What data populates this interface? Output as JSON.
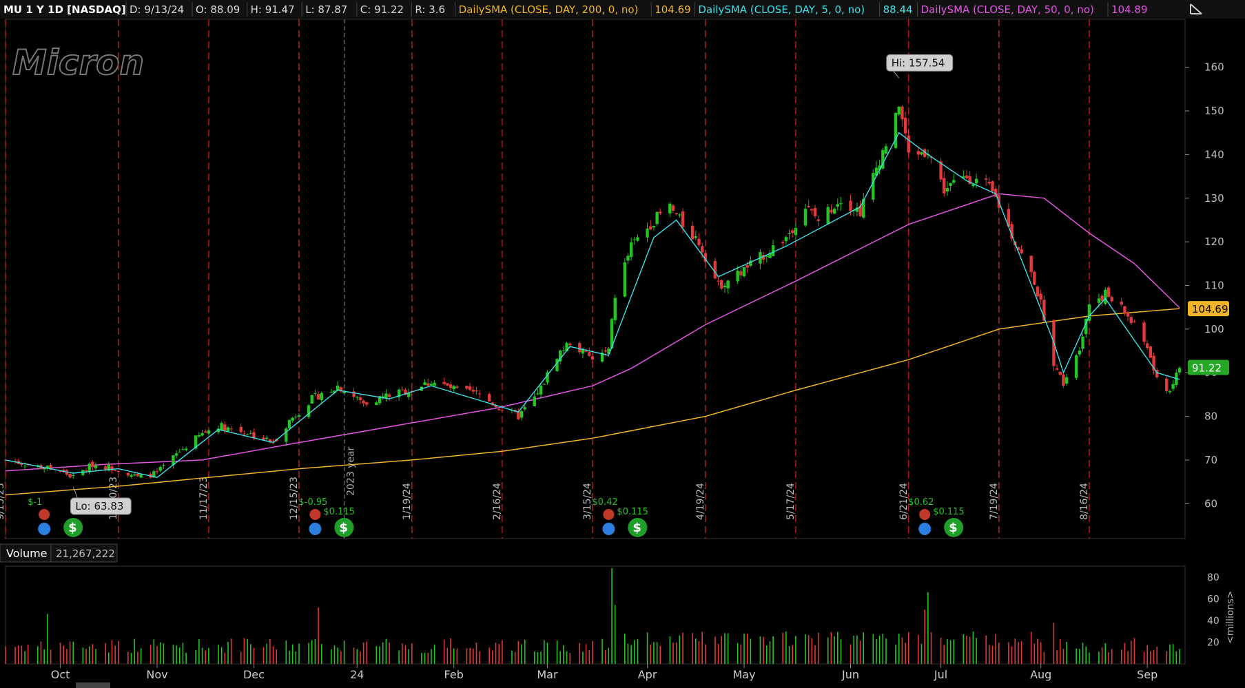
{
  "header": {
    "symbol": "MU 1 Y 1D [NASDAQ]",
    "fields": [
      {
        "label": "D: 9/13/24",
        "color": "#d8d8d8"
      },
      {
        "label": "O: 88.09",
        "color": "#d8d8d8"
      },
      {
        "label": "H: 91.47",
        "color": "#d8d8d8"
      },
      {
        "label": "L: 87.87",
        "color": "#d8d8d8"
      },
      {
        "label": "C: 91.22",
        "color": "#d8d8d8"
      },
      {
        "label": "R: 3.6",
        "color": "#d8d8d8"
      },
      {
        "label": "DailySMA (CLOSE, DAY, 200, 0, no)",
        "color": "#f0b429"
      },
      {
        "label": "104.69",
        "color": "#f0b429"
      },
      {
        "label": "DailySMA (CLOSE, DAY, 5, 0, no)",
        "color": "#3ee0ea"
      },
      {
        "label": "88.44",
        "color": "#3ee0ea"
      },
      {
        "label": "DailySMA (CLOSE, DAY, 50, 0, no)",
        "color": "#e455e4"
      },
      {
        "label": "104.89",
        "color": "#e455e4"
      }
    ]
  },
  "logo_text": "Micron",
  "chart_data": {
    "type": "candlestick",
    "price_axis": {
      "min": 52,
      "max": 171,
      "ticks": [
        60,
        70,
        80,
        90,
        100,
        110,
        120,
        130,
        140,
        150,
        160
      ]
    },
    "hi_label": "Hi: 157.54",
    "lo_label": "Lo: 63.83",
    "hi": {
      "date": "2024-06-18",
      "value": 157.54
    },
    "lo": {
      "date": "2023-10-06",
      "value": 63.83
    },
    "price_tags": [
      {
        "label": "104.69",
        "value": 104.69,
        "color": "#f0b429",
        "text_color": "#000"
      },
      {
        "label": "91.22",
        "value": 91.22,
        "color": "#25a825",
        "text_color": "#fff"
      }
    ],
    "x_axis": {
      "start": "2023-09-15",
      "end": "2024-09-13",
      "months": [
        {
          "label": "Oct",
          "date": "2023-10-02"
        },
        {
          "label": "Nov",
          "date": "2023-11-01"
        },
        {
          "label": "Dec",
          "date": "2023-12-01"
        },
        {
          "label": "24",
          "date": "2024-01-02"
        },
        {
          "label": "Feb",
          "date": "2024-02-01"
        },
        {
          "label": "Mar",
          "date": "2024-03-01"
        },
        {
          "label": "Apr",
          "date": "2024-04-01"
        },
        {
          "label": "May",
          "date": "2024-05-01"
        },
        {
          "label": "Jun",
          "date": "2024-06-03"
        },
        {
          "label": "Jul",
          "date": "2024-07-01"
        },
        {
          "label": "Aug",
          "date": "2024-08-01"
        },
        {
          "label": "Sep",
          "date": "2024-09-03"
        }
      ]
    },
    "expiration_lines": [
      {
        "date": "2023-09-15",
        "label": "9/15/23"
      },
      {
        "date": "2023-10-20",
        "label": "10/20/23"
      },
      {
        "date": "2023-11-17",
        "label": "11/17/23"
      },
      {
        "date": "2023-12-15",
        "label": "12/15/23"
      },
      {
        "date": "2024-01-19",
        "label": "1/19/24"
      },
      {
        "date": "2024-02-16",
        "label": "2/16/24"
      },
      {
        "date": "2024-03-15",
        "label": "3/15/24"
      },
      {
        "date": "2024-04-19",
        "label": "4/19/24"
      },
      {
        "date": "2024-05-17",
        "label": "5/17/24"
      },
      {
        "date": "2024-06-21",
        "label": "6/21/24"
      },
      {
        "date": "2024-07-19",
        "label": "7/19/24"
      },
      {
        "date": "2024-08-16",
        "label": "8/16/24"
      }
    ],
    "year_line": {
      "date": "2023-12-29",
      "label": "2023 year"
    },
    "events": [
      {
        "date": "2023-09-27",
        "earnings": "$-1",
        "dividend": ""
      },
      {
        "date": "2023-12-20",
        "earnings": "$-0.95",
        "dividend": "$0.115"
      },
      {
        "date": "2024-03-20",
        "earnings": "$0.42",
        "dividend": "$0.115"
      },
      {
        "date": "2024-06-26",
        "earnings": "$0.62",
        "dividend": "$0.115"
      }
    ],
    "keypoints": [
      [
        "2023-09-15",
        70
      ],
      [
        "2023-09-22",
        69
      ],
      [
        "2023-10-02",
        67.5
      ],
      [
        "2023-10-06",
        66
      ],
      [
        "2023-10-12",
        69
      ],
      [
        "2023-10-20",
        68
      ],
      [
        "2023-10-26",
        66
      ],
      [
        "2023-11-01",
        67
      ],
      [
        "2023-11-08",
        72
      ],
      [
        "2023-11-15",
        76
      ],
      [
        "2023-11-20",
        78
      ],
      [
        "2023-11-30",
        76
      ],
      [
        "2023-12-07",
        74
      ],
      [
        "2023-12-12",
        79
      ],
      [
        "2023-12-19",
        84
      ],
      [
        "2023-12-27",
        87
      ],
      [
        "2024-01-04",
        83
      ],
      [
        "2024-01-12",
        85
      ],
      [
        "2024-01-19",
        86
      ],
      [
        "2024-01-25",
        88
      ],
      [
        "2024-02-02",
        86
      ],
      [
        "2024-02-09",
        85
      ],
      [
        "2024-02-15",
        82
      ],
      [
        "2024-02-21",
        80
      ],
      [
        "2024-02-27",
        85
      ],
      [
        "2024-03-04",
        94
      ],
      [
        "2024-03-08",
        97
      ],
      [
        "2024-03-15",
        93
      ],
      [
        "2024-03-20",
        95
      ],
      [
        "2024-03-22",
        108
      ],
      [
        "2024-03-27",
        119
      ],
      [
        "2024-04-03",
        125
      ],
      [
        "2024-04-08",
        128
      ],
      [
        "2024-04-12",
        124
      ],
      [
        "2024-04-17",
        120
      ],
      [
        "2024-04-23",
        110
      ],
      [
        "2024-04-30",
        113
      ],
      [
        "2024-05-07",
        117
      ],
      [
        "2024-05-14",
        121
      ],
      [
        "2024-05-20",
        128
      ],
      [
        "2024-05-24",
        125
      ],
      [
        "2024-05-31",
        130
      ],
      [
        "2024-06-06",
        127
      ],
      [
        "2024-06-12",
        139
      ],
      [
        "2024-06-17",
        148
      ],
      [
        "2024-06-18",
        152
      ],
      [
        "2024-06-21",
        140
      ],
      [
        "2024-06-27",
        141
      ],
      [
        "2024-07-02",
        132
      ],
      [
        "2024-07-09",
        135
      ],
      [
        "2024-07-15",
        133
      ],
      [
        "2024-07-18",
        130
      ],
      [
        "2024-07-24",
        120
      ],
      [
        "2024-07-30",
        111
      ],
      [
        "2024-08-02",
        103
      ],
      [
        "2024-08-05",
        91
      ],
      [
        "2024-08-08",
        88
      ],
      [
        "2024-08-13",
        96
      ],
      [
        "2024-08-16",
        106
      ],
      [
        "2024-08-21",
        108
      ],
      [
        "2024-08-27",
        104
      ],
      [
        "2024-09-03",
        96
      ],
      [
        "2024-09-06",
        88
      ],
      [
        "2024-09-10",
        86
      ],
      [
        "2024-09-13",
        91.22
      ]
    ],
    "sma5": [
      [
        "2023-09-15",
        70
      ],
      [
        "2023-10-06",
        67
      ],
      [
        "2023-10-20",
        68
      ],
      [
        "2023-11-01",
        66
      ],
      [
        "2023-11-20",
        77
      ],
      [
        "2023-12-07",
        74
      ],
      [
        "2023-12-27",
        86
      ],
      [
        "2024-01-12",
        84
      ],
      [
        "2024-01-25",
        87
      ],
      [
        "2024-02-21",
        81
      ],
      [
        "2024-03-08",
        96
      ],
      [
        "2024-03-20",
        94
      ],
      [
        "2024-04-03",
        121
      ],
      [
        "2024-04-10",
        125
      ],
      [
        "2024-04-23",
        112
      ],
      [
        "2024-05-14",
        119
      ],
      [
        "2024-06-06",
        128
      ],
      [
        "2024-06-18",
        145
      ],
      [
        "2024-06-27",
        140
      ],
      [
        "2024-07-09",
        134
      ],
      [
        "2024-07-18",
        131
      ],
      [
        "2024-08-05",
        97
      ],
      [
        "2024-08-08",
        90
      ],
      [
        "2024-08-16",
        103
      ],
      [
        "2024-08-21",
        107
      ],
      [
        "2024-09-06",
        90
      ],
      [
        "2024-09-13",
        88.44
      ]
    ],
    "sma50": [
      [
        "2023-09-15",
        67.5
      ],
      [
        "2023-10-16",
        69
      ],
      [
        "2023-11-15",
        70
      ],
      [
        "2023-12-15",
        74
      ],
      [
        "2024-01-15",
        78
      ],
      [
        "2024-02-15",
        82
      ],
      [
        "2024-03-15",
        87
      ],
      [
        "2024-03-27",
        91
      ],
      [
        "2024-04-19",
        101
      ],
      [
        "2024-05-17",
        111
      ],
      [
        "2024-06-21",
        124
      ],
      [
        "2024-07-19",
        131
      ],
      [
        "2024-08-02",
        130
      ],
      [
        "2024-08-16",
        122
      ],
      [
        "2024-08-30",
        115
      ],
      [
        "2024-09-13",
        104.89
      ]
    ],
    "sma200": [
      [
        "2023-09-15",
        62
      ],
      [
        "2023-10-20",
        64
      ],
      [
        "2023-11-17",
        66
      ],
      [
        "2023-12-15",
        68
      ],
      [
        "2024-01-19",
        70
      ],
      [
        "2024-02-16",
        72
      ],
      [
        "2024-03-15",
        75
      ],
      [
        "2024-04-19",
        80
      ],
      [
        "2024-05-17",
        86
      ],
      [
        "2024-06-21",
        93
      ],
      [
        "2024-07-19",
        100
      ],
      [
        "2024-08-16",
        103
      ],
      [
        "2024-09-13",
        104.69
      ]
    ],
    "volume": {
      "label": "Volume",
      "value_label": "21,267,222",
      "unit_label": "<millions>",
      "axis": {
        "min": 0,
        "max": 90,
        "ticks": [
          20,
          40,
          60,
          80
        ]
      },
      "spikes": [
        {
          "date": "2023-09-28",
          "value": 46
        },
        {
          "date": "2023-12-21",
          "value": 52
        },
        {
          "date": "2024-03-21",
          "value": 88
        },
        {
          "date": "2024-03-22",
          "value": 54
        },
        {
          "date": "2024-06-26",
          "value": 50
        },
        {
          "date": "2024-06-27",
          "value": 66
        },
        {
          "date": "2024-08-05",
          "value": 38
        }
      ]
    }
  }
}
